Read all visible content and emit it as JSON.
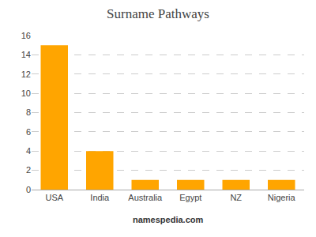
{
  "chart_data": {
    "type": "bar",
    "title": "Surname Pathways",
    "categories": [
      "USA",
      "India",
      "Australia",
      "Egypt",
      "NZ",
      "Nigeria"
    ],
    "values": [
      15,
      4,
      1,
      1,
      1,
      1
    ],
    "color": "#FFA500",
    "ylim": [
      0,
      16
    ],
    "yticks": [
      0,
      2,
      4,
      6,
      8,
      10,
      12,
      14,
      16
    ],
    "grid": true,
    "annotations": [
      "namespedia.com"
    ]
  }
}
